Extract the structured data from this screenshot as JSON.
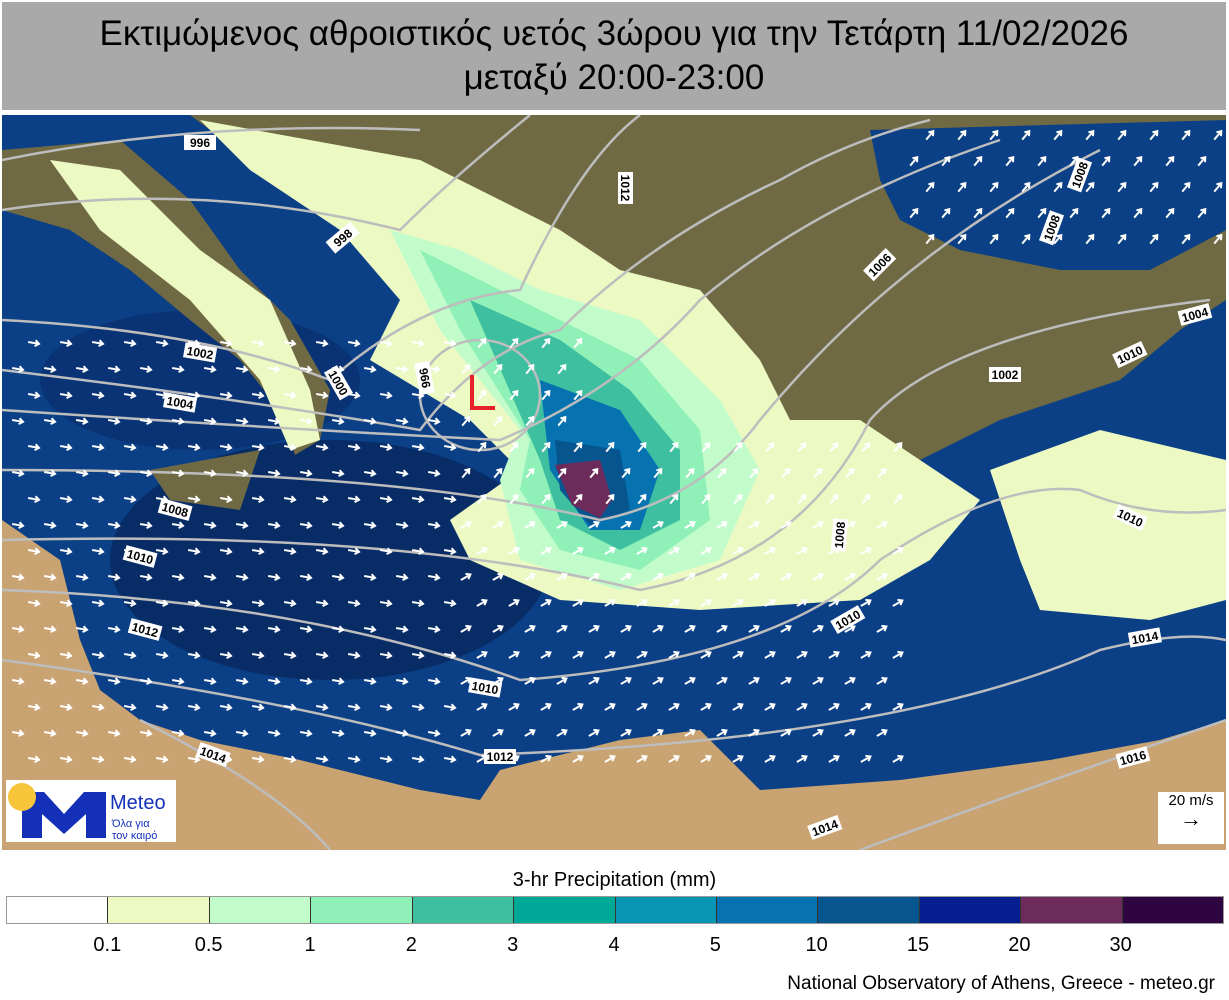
{
  "title": {
    "line1": "Εκτιμώμενος αθροιστικός υετός 3ώρου για την Τετάρτη 11/02/2026",
    "line2": "μεταξύ 20:00-23:00"
  },
  "map": {
    "low_marker": "L",
    "isobar_labels": [
      "996",
      "998",
      "1002",
      "1004",
      "1006",
      "1008",
      "1008",
      "1010",
      "1010",
      "1002",
      "1004",
      "1000",
      "996",
      "1008",
      "1010",
      "1012",
      "1010",
      "1012",
      "1014",
      "1014",
      "1016",
      "1014",
      "1010",
      "1012",
      "1008"
    ],
    "colors": {
      "sea": "#0b3f86",
      "land": "#7a6a45",
      "desert": "#c9a472",
      "isobar": "#bdbdbd",
      "low": "#e8202a",
      "wind_arrow": "#ffffff"
    }
  },
  "logo": {
    "name": "Meteo",
    "tagline_1": "Όλα για",
    "tagline_2": "τον καιρό"
  },
  "wind_scale": {
    "label": "20 m/s",
    "arrow": "→"
  },
  "legend": {
    "title": "3-hr Precipitation (mm)",
    "colors": [
      "#ffffff",
      "#ecf9c3",
      "#c3fccb",
      "#8ff0b8",
      "#3ec0a0",
      "#00a898",
      "#0896b4",
      "#0672b0",
      "#06558e",
      "#061e90",
      "#6c2b5a",
      "#2e0540"
    ],
    "ticks": [
      "0.1",
      "0.5",
      "1",
      "2",
      "3",
      "4",
      "5",
      "10",
      "15",
      "20",
      "30"
    ]
  },
  "credit": "National Observatory of Athens, Greece - meteo.gr"
}
